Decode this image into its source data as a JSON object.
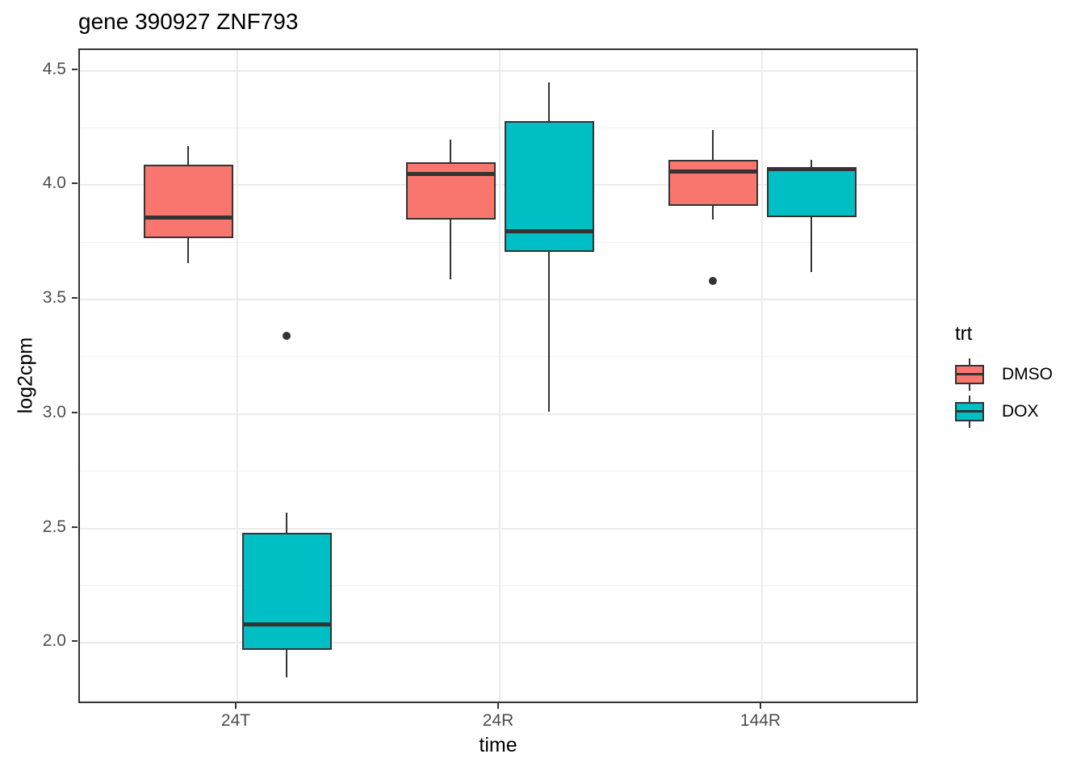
{
  "chart_data": {
    "type": "boxplot",
    "title": "gene 390927 ZNF793",
    "xlabel": "time",
    "ylabel": "log2cpm",
    "categories": [
      "24T",
      "24R",
      "144R"
    ],
    "y_tick_labels": [
      "2.0",
      "2.5",
      "3.0",
      "3.5",
      "4.0",
      "4.5"
    ],
    "ylim": [
      1.73,
      4.59
    ],
    "grid": true,
    "legend": {
      "title": "trt",
      "position": "right",
      "entries": [
        {
          "label": "DMSO",
          "color": "#F8766D"
        },
        {
          "label": "DOX",
          "color": "#00BFC4"
        }
      ]
    },
    "series": [
      {
        "name": "DMSO",
        "color": "#F8766D",
        "boxes": [
          {
            "category": "24T",
            "whisker_low": 3.66,
            "q1": 3.77,
            "median": 3.86,
            "q3": 4.09,
            "whisker_high": 4.17,
            "outliers": []
          },
          {
            "category": "24R",
            "whisker_low": 3.59,
            "q1": 3.85,
            "median": 4.05,
            "q3": 4.1,
            "whisker_high": 4.2,
            "outliers": []
          },
          {
            "category": "144R",
            "whisker_low": 3.85,
            "q1": 3.91,
            "median": 4.06,
            "q3": 4.11,
            "whisker_high": 4.24,
            "outliers": [
              3.58
            ]
          }
        ]
      },
      {
        "name": "DOX",
        "color": "#00BFC4",
        "boxes": [
          {
            "category": "24T",
            "whisker_low": 1.85,
            "q1": 1.97,
            "median": 2.08,
            "q3": 2.48,
            "whisker_high": 2.57,
            "outliers": [
              3.34
            ]
          },
          {
            "category": "24R",
            "whisker_low": 3.01,
            "q1": 3.71,
            "median": 3.8,
            "q3": 4.28,
            "whisker_high": 4.45,
            "outliers": []
          },
          {
            "category": "144R",
            "whisker_low": 3.62,
            "q1": 3.86,
            "median": 4.07,
            "q3": 4.08,
            "whisker_high": 4.11,
            "outliers": []
          }
        ]
      }
    ],
    "colors": {
      "box_outline": "#333333",
      "grid_major": "#EBEBEB",
      "grid_minor": "#F2F2F2",
      "tick_text": "#4D4D4D",
      "title_text": "#000000"
    }
  }
}
